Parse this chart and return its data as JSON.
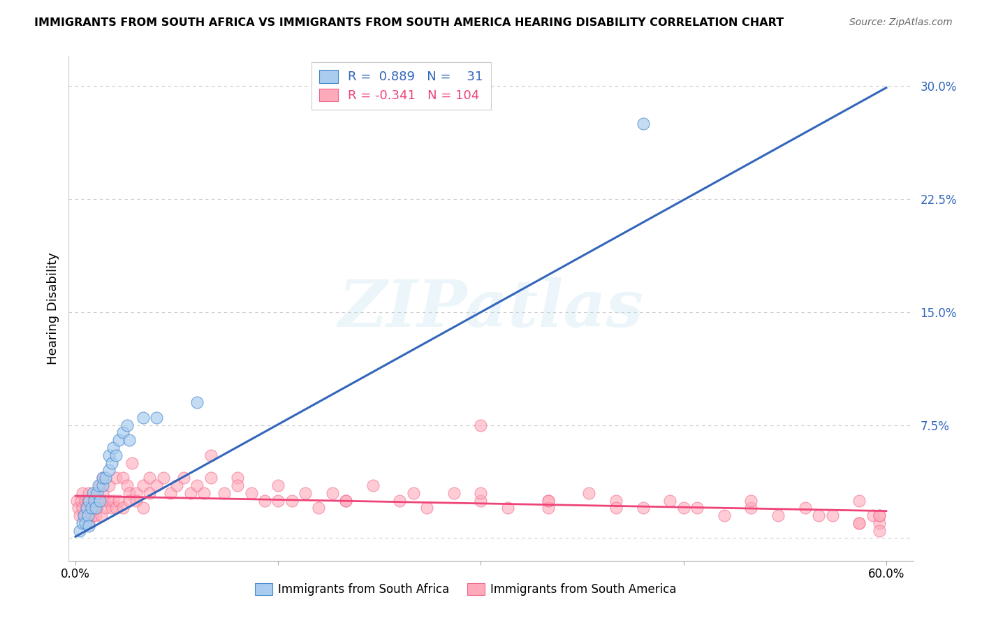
{
  "title": "IMMIGRANTS FROM SOUTH AFRICA VS IMMIGRANTS FROM SOUTH AMERICA HEARING DISABILITY CORRELATION CHART",
  "source": "Source: ZipAtlas.com",
  "ylabel": "Hearing Disability",
  "xlim": [
    -0.005,
    0.62
  ],
  "ylim": [
    -0.015,
    0.32
  ],
  "xticks": [
    0.0,
    0.15,
    0.3,
    0.45,
    0.6
  ],
  "xtick_labels": [
    "0.0%",
    "",
    "",
    "",
    "60.0%"
  ],
  "yticks": [
    0.0,
    0.075,
    0.15,
    0.225,
    0.3
  ],
  "ytick_labels": [
    "",
    "7.5%",
    "15.0%",
    "22.5%",
    "30.0%"
  ],
  "legend1_R": "0.889",
  "legend1_N": "31",
  "legend2_R": "-0.341",
  "legend2_N": "104",
  "blue_fill_color": "#AACCEE",
  "blue_edge_color": "#4488CC",
  "pink_fill_color": "#FFAABB",
  "pink_edge_color": "#EE6688",
  "blue_line_color": "#3366BB",
  "pink_line_color": "#EE4477",
  "watermark": "ZIPatlas",
  "grid_color": "#CCCCCC",
  "blue_scatter_x": [
    0.003,
    0.005,
    0.006,
    0.007,
    0.008,
    0.009,
    0.01,
    0.01,
    0.012,
    0.013,
    0.014,
    0.015,
    0.016,
    0.017,
    0.018,
    0.02,
    0.02,
    0.022,
    0.025,
    0.025,
    0.027,
    0.028,
    0.03,
    0.032,
    0.035,
    0.038,
    0.04,
    0.05,
    0.06,
    0.09,
    0.42
  ],
  "blue_scatter_y": [
    0.005,
    0.01,
    0.015,
    0.01,
    0.02,
    0.015,
    0.008,
    0.025,
    0.02,
    0.03,
    0.025,
    0.02,
    0.03,
    0.035,
    0.025,
    0.035,
    0.04,
    0.04,
    0.045,
    0.055,
    0.05,
    0.06,
    0.055,
    0.065,
    0.07,
    0.075,
    0.065,
    0.08,
    0.08,
    0.09,
    0.275
  ],
  "pink_scatter_x": [
    0.001,
    0.002,
    0.003,
    0.004,
    0.005,
    0.005,
    0.006,
    0.007,
    0.007,
    0.008,
    0.009,
    0.009,
    0.01,
    0.01,
    0.011,
    0.012,
    0.013,
    0.014,
    0.015,
    0.015,
    0.016,
    0.017,
    0.018,
    0.019,
    0.02,
    0.02,
    0.021,
    0.022,
    0.025,
    0.025,
    0.027,
    0.028,
    0.03,
    0.03,
    0.032,
    0.035,
    0.035,
    0.038,
    0.04,
    0.04,
    0.042,
    0.045,
    0.045,
    0.05,
    0.05,
    0.055,
    0.055,
    0.06,
    0.065,
    0.07,
    0.075,
    0.08,
    0.085,
    0.09,
    0.095,
    0.1,
    0.11,
    0.12,
    0.13,
    0.14,
    0.15,
    0.16,
    0.17,
    0.18,
    0.19,
    0.2,
    0.22,
    0.24,
    0.26,
    0.28,
    0.3,
    0.32,
    0.35,
    0.38,
    0.4,
    0.42,
    0.44,
    0.46,
    0.48,
    0.5,
    0.52,
    0.54,
    0.56,
    0.58,
    0.58,
    0.59,
    0.595,
    0.595,
    0.3,
    0.35,
    0.1,
    0.12,
    0.15,
    0.2,
    0.25,
    0.3,
    0.35,
    0.4,
    0.45,
    0.5,
    0.55,
    0.58,
    0.595,
    0.595
  ],
  "pink_scatter_y": [
    0.025,
    0.02,
    0.015,
    0.025,
    0.02,
    0.03,
    0.015,
    0.025,
    0.015,
    0.02,
    0.025,
    0.015,
    0.03,
    0.01,
    0.025,
    0.02,
    0.015,
    0.025,
    0.03,
    0.015,
    0.02,
    0.025,
    0.035,
    0.015,
    0.03,
    0.04,
    0.025,
    0.02,
    0.025,
    0.035,
    0.02,
    0.025,
    0.04,
    0.02,
    0.025,
    0.04,
    0.02,
    0.035,
    0.03,
    0.025,
    0.05,
    0.03,
    0.025,
    0.035,
    0.02,
    0.04,
    0.03,
    0.035,
    0.04,
    0.03,
    0.035,
    0.04,
    0.03,
    0.035,
    0.03,
    0.04,
    0.03,
    0.04,
    0.03,
    0.025,
    0.035,
    0.025,
    0.03,
    0.02,
    0.03,
    0.025,
    0.035,
    0.025,
    0.02,
    0.03,
    0.025,
    0.02,
    0.025,
    0.03,
    0.025,
    0.02,
    0.025,
    0.02,
    0.015,
    0.02,
    0.015,
    0.02,
    0.015,
    0.01,
    0.025,
    0.015,
    0.01,
    0.015,
    0.075,
    0.02,
    0.055,
    0.035,
    0.025,
    0.025,
    0.03,
    0.03,
    0.025,
    0.02,
    0.02,
    0.025,
    0.015,
    0.01,
    0.015,
    0.005
  ],
  "blue_line_x": [
    0.0,
    0.6
  ],
  "blue_line_y": [
    0.001,
    0.299
  ],
  "pink_line_x": [
    0.0,
    0.6
  ],
  "pink_line_y": [
    0.028,
    0.018
  ]
}
